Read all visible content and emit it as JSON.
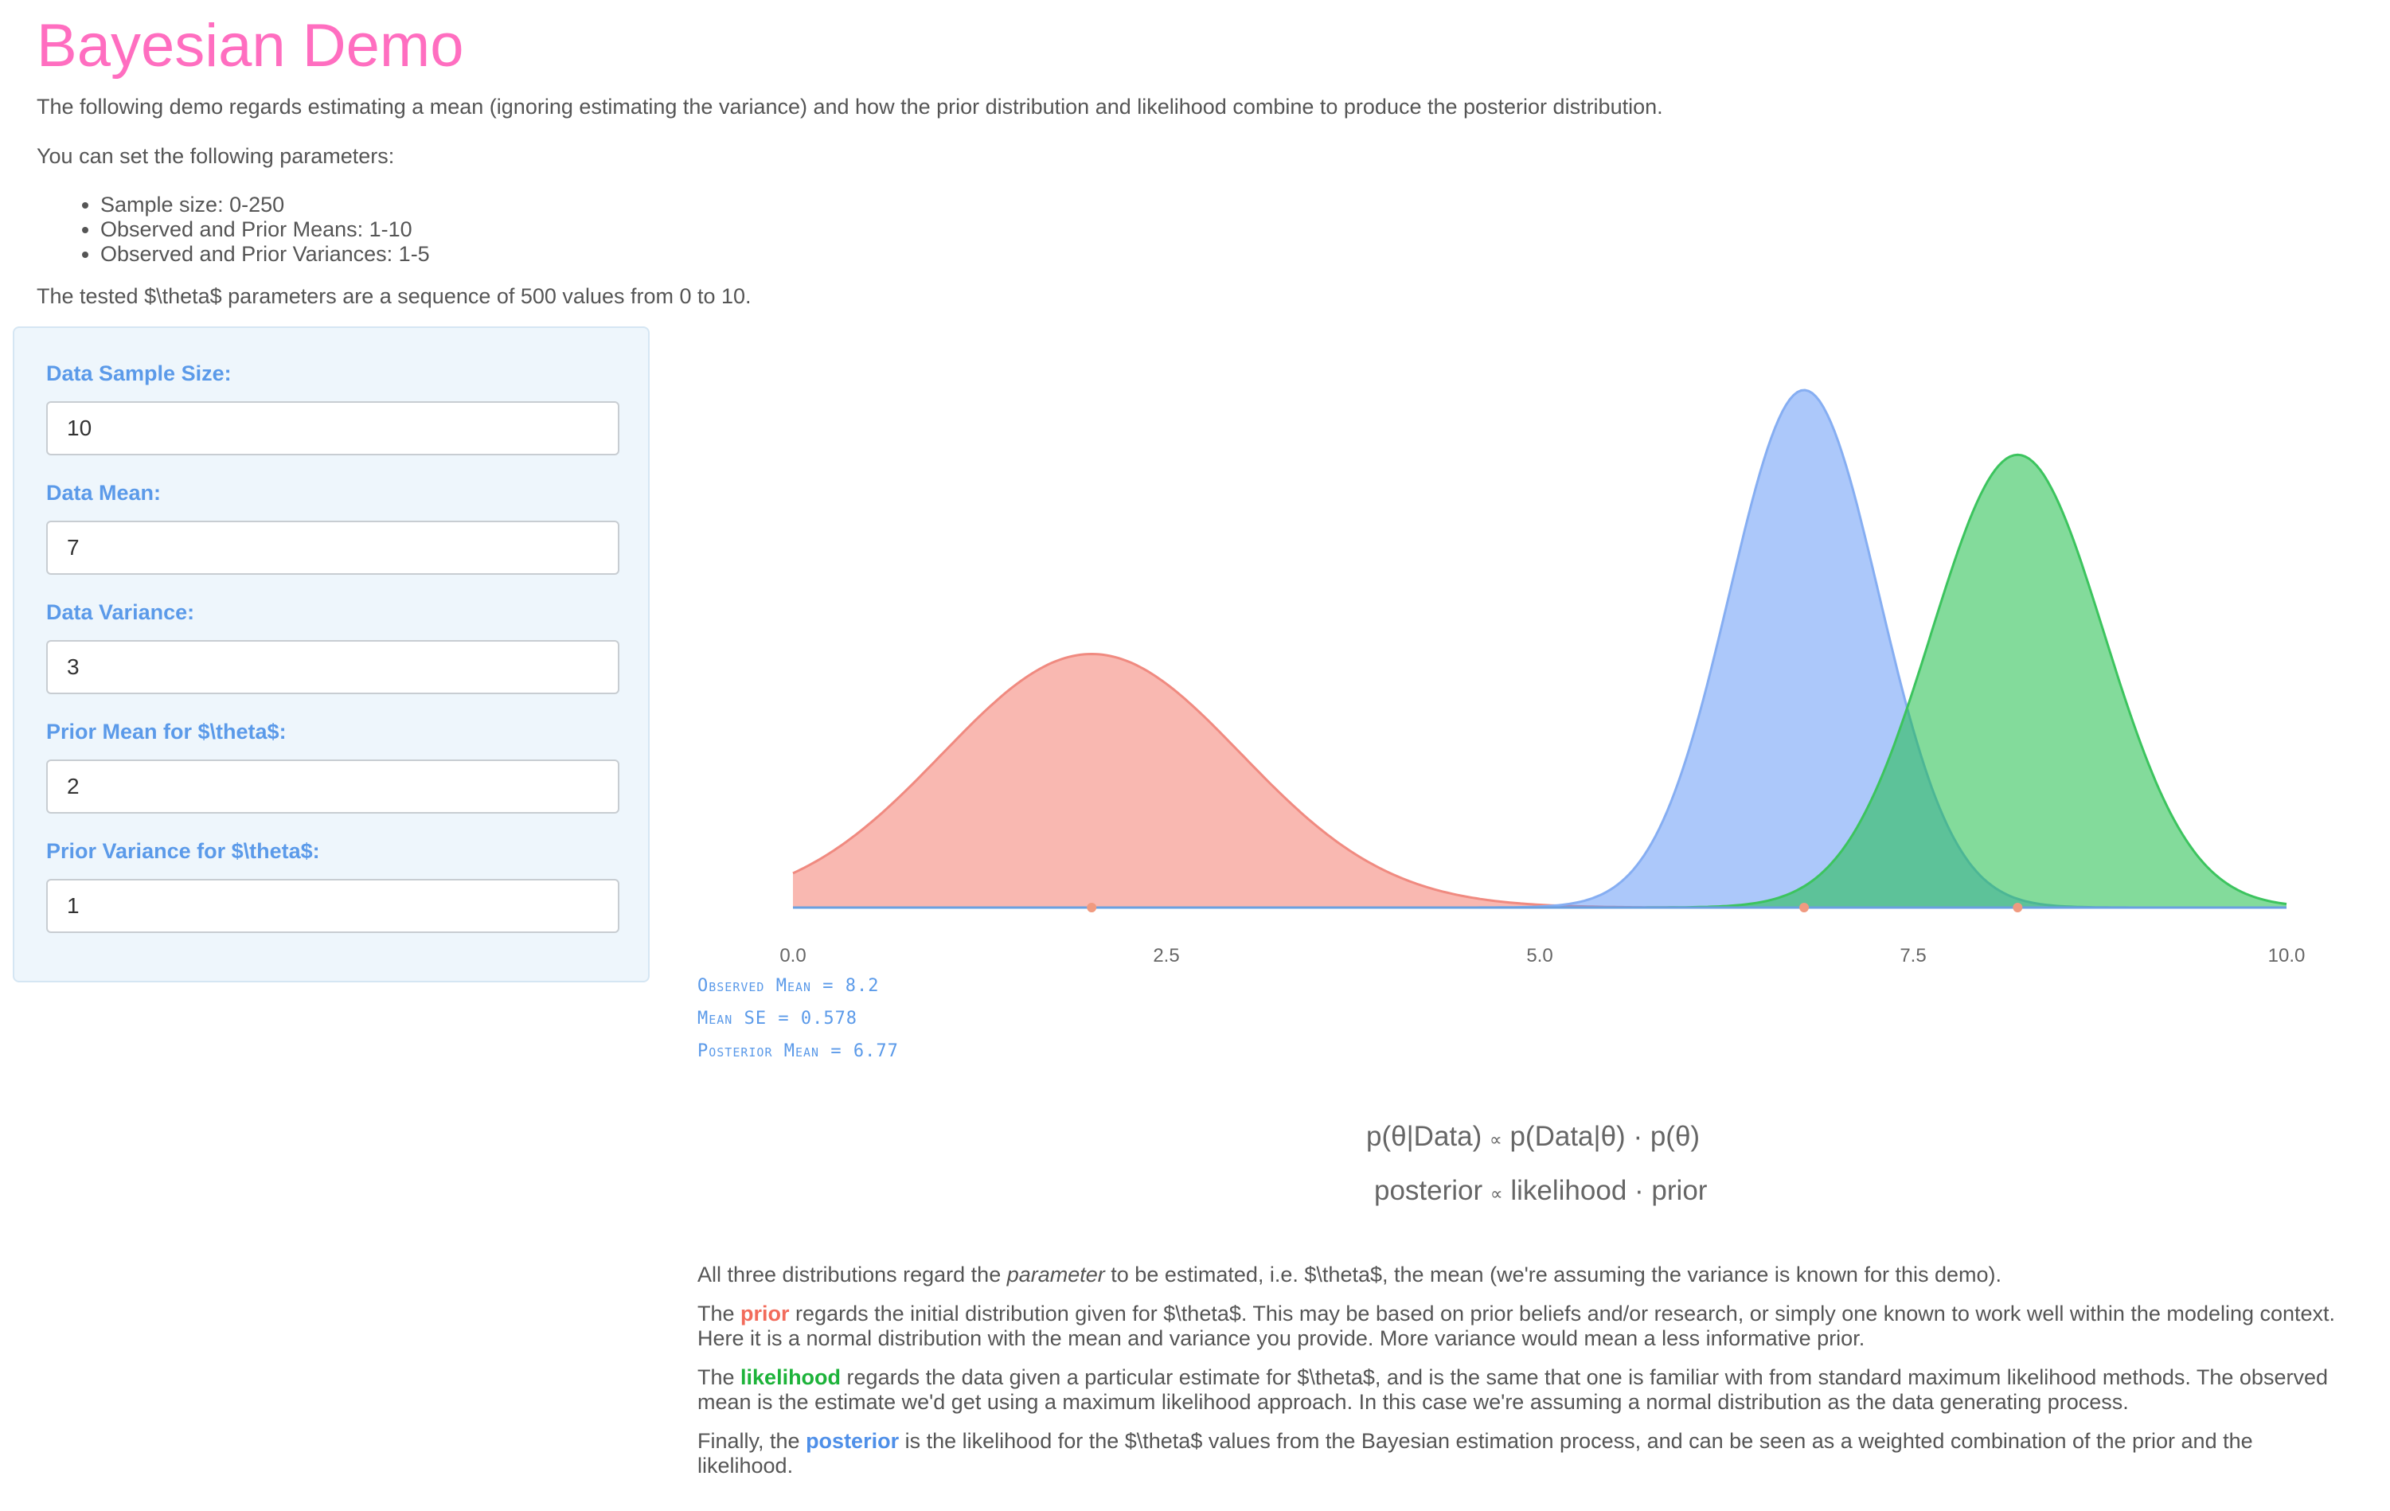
{
  "title": "Bayesian Demo",
  "intro": {
    "p1": "The following demo regards estimating a mean (ignoring estimating the variance) and how the prior distribution and likelihood combine to produce the posterior distribution.",
    "p2": "You can set the following parameters:",
    "params": [
      "Sample size: 0-250",
      "Observed and Prior Means: 1-10",
      "Observed and Prior Variances: 1-5"
    ],
    "p3": "The tested $\\theta$ parameters are a sequence of 500 values from 0 to 10."
  },
  "form": {
    "sample_size": {
      "label": "Data Sample Size:",
      "value": "10"
    },
    "data_mean": {
      "label": "Data Mean:",
      "value": "7"
    },
    "data_variance": {
      "label": "Data Variance:",
      "value": "3"
    },
    "prior_mean": {
      "label": "Prior Mean for $\\theta$:",
      "value": "2"
    },
    "prior_variance": {
      "label": "Prior Variance for $\\theta$:",
      "value": "1"
    }
  },
  "stats": {
    "observed_mean_label": "Observed Mean",
    "observed_mean": "8.2",
    "mean_se_label": "Mean SE",
    "mean_se": "0.578",
    "posterior_mean_label": "Posterior Mean",
    "posterior_mean": "6.77"
  },
  "colors": {
    "prior": "#f26b5b",
    "likelihood": "#1db33a",
    "posterior": "#4e8fe8",
    "accent_title": "#ff6ec0"
  },
  "chart_data": {
    "type": "area",
    "xlim": [
      0,
      10
    ],
    "x_ticks": [
      "0.0",
      "2.5",
      "5.0",
      "7.5",
      "10.0"
    ],
    "series": [
      {
        "key": "prior",
        "mean": 2.0,
        "sd": 1.0,
        "peak_relative": 0.49
      },
      {
        "key": "posterior",
        "mean": 6.77,
        "sd": 0.5,
        "peak_relative": 1.0
      },
      {
        "key": "likelihood",
        "mean": 8.2,
        "sd": 0.578,
        "peak_relative": 0.875
      }
    ],
    "mean_points": [
      2.0,
      6.77,
      8.2
    ]
  },
  "formula": {
    "top_left": "p(θ|Data)",
    "top_mid": "p(Data|θ)",
    "top_right": "p(θ)",
    "bottom_left": "posterior",
    "bottom_mid": "likelihood",
    "bottom_right": "prior",
    "prop": "∝",
    "dot": "·"
  },
  "desc": {
    "p1_a": "All three distributions regard the ",
    "p1_em": "parameter",
    "p1_b": " to be estimated, i.e. $\\theta$, the mean (we're assuming the variance is known for this demo).",
    "p2_a": "The ",
    "p2_kw": "prior",
    "p2_b": " regards the initial distribution given for $\\theta$. This may be based on prior beliefs and/or research, or simply one known to work well within the modeling context. Here it is a normal distribution with the mean and variance you provide. More variance would mean a less informative prior.",
    "p3_a": "The ",
    "p3_kw": "likelihood",
    "p3_b": " regards the data given a particular estimate for $\\theta$, and is the same that one is familiar with from standard maximum likelihood methods. The observed mean is the estimate we'd get using a maximum likelihood approach. In this case we're assuming a normal distribution as the data generating process.",
    "p4_a": "Finally, the ",
    "p4_kw": "posterior",
    "p4_b": " is the likelihood for the $\\theta$ values from the Bayesian estimation process, and can be seen as a weighted combination of the prior and the likelihood."
  }
}
